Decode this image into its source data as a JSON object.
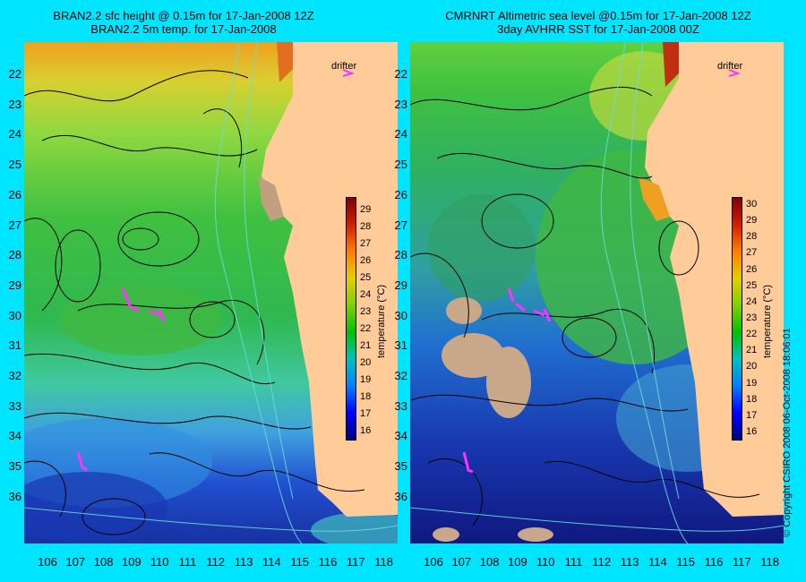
{
  "left_panel": {
    "title_line1": "BRAN2.2 sfc height @ 0.15m for 17-Jan-2008 12Z",
    "title_line2": "BRAN2.2 5m temp. for 17-Jan-2008",
    "drifter_label": "drifter",
    "colorbar_label": "temperature (°C)",
    "colorbar_ticks": [
      "16",
      "17",
      "18",
      "19",
      "20",
      "21",
      "22",
      "23",
      "24",
      "25",
      "26",
      "27",
      "28",
      "29"
    ],
    "colorbar_range": [
      15.5,
      29.8
    ]
  },
  "right_panel": {
    "title_line1": "CMRNRT Altimetric sea level  @0.15m  for 17-Jan-2008 12Z",
    "title_line2": "3day AVHRR SST for 17-Jan-2008 00Z",
    "drifter_label": "drifter",
    "colorbar_label": "temperature (°C)",
    "colorbar_ticks": [
      "16",
      "17",
      "18",
      "19",
      "20",
      "21",
      "22",
      "23",
      "24",
      "25",
      "26",
      "27",
      "28",
      "29",
      "30"
    ],
    "colorbar_range": [
      15.5,
      30.5
    ]
  },
  "latitude_ticks": [
    "22",
    "23",
    "24",
    "25",
    "26",
    "27",
    "28",
    "29",
    "30",
    "31",
    "32",
    "33",
    "34",
    "35",
    "36"
  ],
  "longitude_ticks": [
    "106",
    "107",
    "108",
    "109",
    "110",
    "111",
    "112",
    "113",
    "114",
    "115",
    "116",
    "117",
    "118"
  ],
  "copyright": "© Copyright CSIRO 2008   06-Oct-2008 18:06:01",
  "colors": {
    "background": "#00e5ff",
    "land": "#ffcc99",
    "drifter": "#ff33ff",
    "contour": "#000000",
    "bathymetry": "#66dddd"
  }
}
